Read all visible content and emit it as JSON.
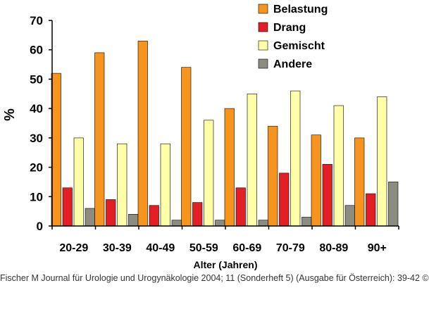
{
  "chart_data": {
    "type": "bar",
    "categories": [
      "20-29",
      "30-39",
      "40-49",
      "50-59",
      "60-69",
      "70-79",
      "80-89",
      "90+"
    ],
    "series": [
      {
        "name": "Belastung",
        "values": [
          52,
          59,
          63,
          54,
          40,
          34,
          31,
          30
        ],
        "color": "#f7941d"
      },
      {
        "name": "Drang",
        "values": [
          13,
          9,
          7,
          8,
          13,
          18,
          21,
          11
        ],
        "color": "#e31e24"
      },
      {
        "name": "Gemischt",
        "values": [
          30,
          28,
          28,
          36,
          45,
          46,
          41,
          44
        ],
        "color": "#ffffa8"
      },
      {
        "name": "Andere",
        "values": [
          6,
          4,
          2,
          2,
          2,
          3,
          7,
          15
        ],
        "color": "#8c8c80"
      }
    ],
    "xlabel": "Alter (Jahren)",
    "ylabel": "%",
    "ylim": [
      0,
      70
    ],
    "yticks": [
      "0",
      "10",
      "20",
      "30",
      "40",
      "50",
      "60",
      "70"
    ],
    "grid": false,
    "legend_position": "top-right"
  },
  "footer": "Fischer M Journal für Urologie und Urogynäkologie 2004; 11 (Sonderheft 5) (Ausgabe für Österreich): 39-42 ©"
}
